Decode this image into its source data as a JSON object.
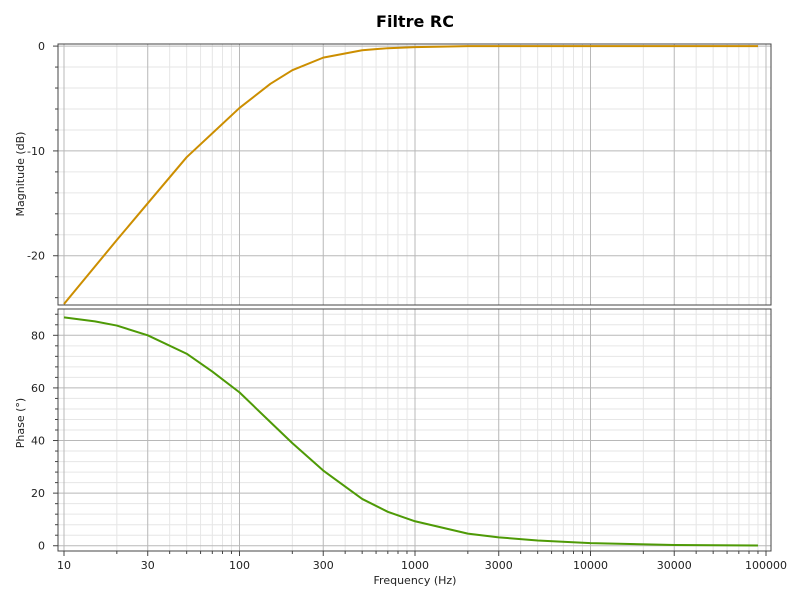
{
  "chart_data": {
    "type": "line",
    "title": "Filtre RC",
    "xlabel": "Frequency (Hz)",
    "xscale": "log",
    "xlim": [
      10,
      100000
    ],
    "x_ticks": [
      10,
      30,
      100,
      300,
      1000,
      3000,
      10000,
      30000,
      100000
    ],
    "x_tick_labels": [
      "10",
      "30",
      "100",
      "300",
      "1000",
      "3000",
      "10000",
      "30000",
      "100000"
    ],
    "grid": true,
    "panels": [
      {
        "id": "magnitude",
        "ylabel": "Magnitude (dB)",
        "ylim": [
          -24.7,
          0.2
        ],
        "y_ticks": [
          0,
          -10,
          -20
        ],
        "y_tick_labels": [
          "0",
          "-10",
          "-20"
        ],
        "series": [
          {
            "color": "#cc8e00",
            "x": [
              10,
              20,
              30,
              50,
              100,
              150,
              200,
              300,
              500,
              700,
              1000,
              2000,
              3000,
              5000,
              10000,
              30000,
              90000
            ],
            "y": [
              -24.6,
              -18.5,
              -15.0,
              -10.6,
              -5.9,
              -3.6,
              -2.3,
              -1.1,
              -0.4,
              -0.2,
              -0.1,
              0,
              0,
              0,
              0,
              0,
              0
            ]
          }
        ]
      },
      {
        "id": "phase",
        "ylabel": "Phase (°)",
        "ylim": [
          -2,
          90
        ],
        "y_ticks": [
          0,
          20,
          40,
          60,
          80
        ],
        "y_tick_labels": [
          "0",
          "20",
          "40",
          "60",
          "80"
        ],
        "series": [
          {
            "color": "#4e9a06",
            "x": [
              10,
              15,
              20,
              30,
              50,
              70,
              100,
              150,
              200,
              300,
              500,
              700,
              1000,
              2000,
              3000,
              5000,
              10000,
              30000,
              90000
            ],
            "y": [
              86.8,
              85.3,
              83.7,
              80.0,
              73.0,
              66.2,
              58.3,
              47.0,
              39.0,
              28.6,
              17.8,
              12.9,
              9.3,
              4.6,
              3.2,
              2.0,
              1.0,
              0.3,
              0.1
            ]
          }
        ]
      }
    ]
  }
}
